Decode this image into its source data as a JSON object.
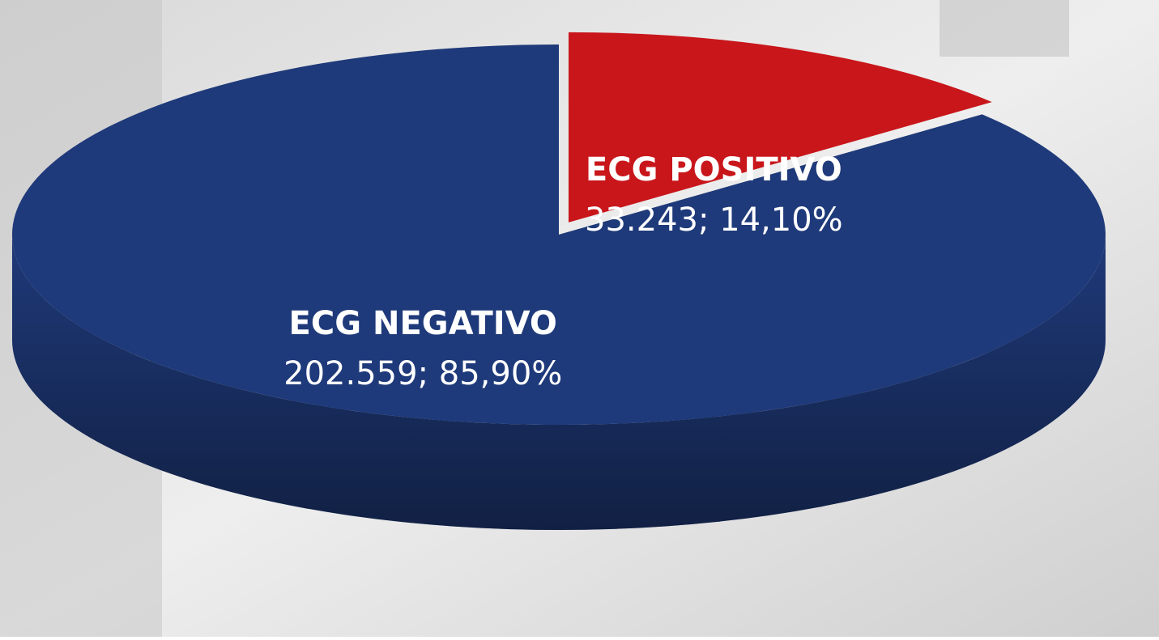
{
  "chart_data": {
    "type": "pie",
    "categories": [
      "ECG NEGATIVO",
      "ECG POSITIVO"
    ],
    "values": [
      202559,
      33243
    ],
    "value_labels": [
      "202.559; 85,90%",
      "33.243; 14,10%"
    ],
    "colors": [
      "#1f3a7a",
      "#c8161b"
    ]
  }
}
